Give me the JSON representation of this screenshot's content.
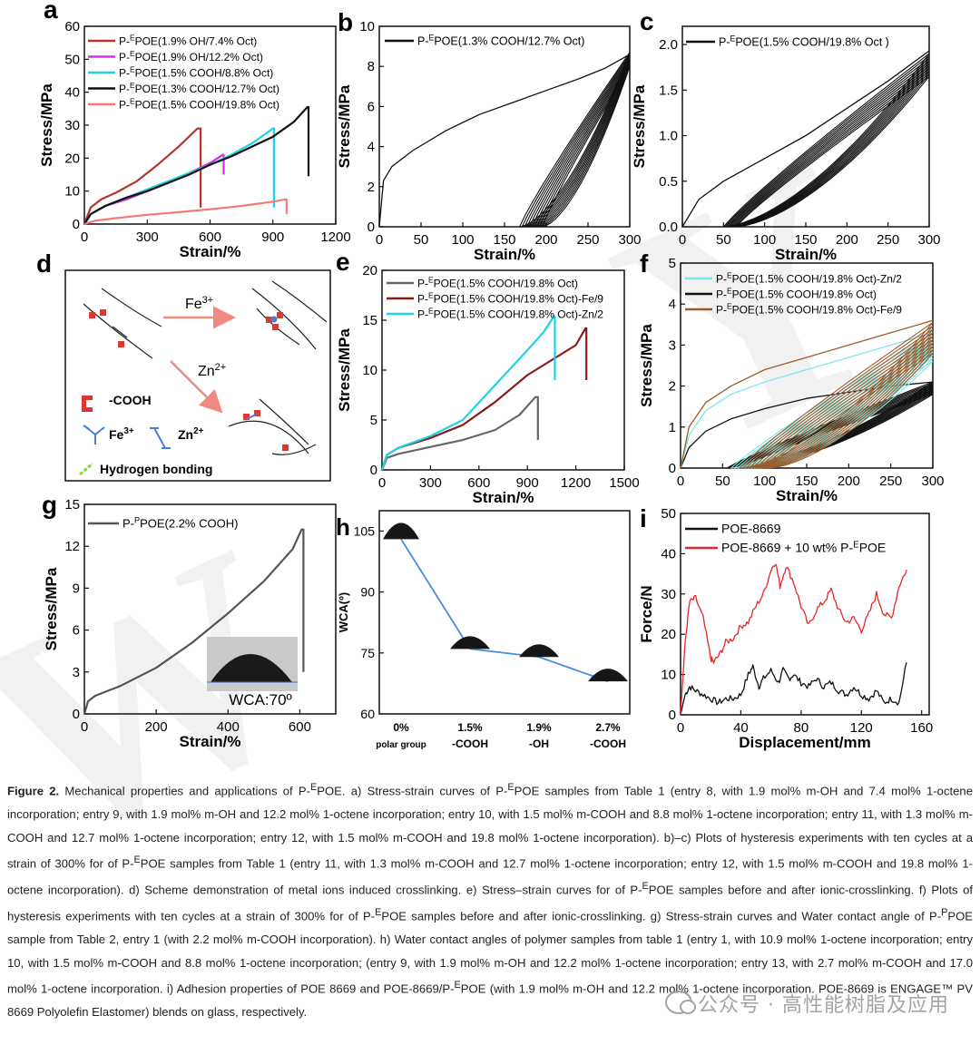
{
  "panels": {
    "a": {
      "letter": "a",
      "ylabel": "Stress/MPa",
      "xlabel": "Strain/%",
      "xticks": [
        "0",
        "300",
        "600",
        "900",
        "1200"
      ],
      "yticks": [
        "0",
        "10",
        "20",
        "30",
        "40",
        "50",
        "60"
      ]
    },
    "b": {
      "letter": "b",
      "ylabel": "Stress/MPa",
      "xlabel": "Strain/%",
      "xticks": [
        "0",
        "50",
        "100",
        "150",
        "200",
        "250",
        "300"
      ],
      "yticks": [
        "0",
        "2",
        "4",
        "6",
        "8",
        "10"
      ]
    },
    "c": {
      "letter": "c",
      "ylabel": "Stress/MPa",
      "xlabel": "Strain/%",
      "xticks": [
        "0",
        "50",
        "100",
        "150",
        "200",
        "250",
        "300"
      ],
      "yticks": [
        "0.0",
        "0.5",
        "1.0",
        "1.5",
        "2.0"
      ]
    },
    "d": {
      "letter": "d",
      "fe_label": "Fe",
      "fe_sup": "3+",
      "zn_label": "Zn",
      "zn_sup": "2+",
      "cooh_label": "-COOH",
      "fe_leg": "Fe",
      "fe_leg_sup": "3+",
      "zn_leg": "Zn",
      "zn_leg_sup": "2+",
      "hb_label": "Hydrogen bonding"
    },
    "e": {
      "letter": "e",
      "ylabel": "Stress/MPa",
      "xlabel": "Strain/%",
      "xticks": [
        "0",
        "300",
        "600",
        "900",
        "1200",
        "1500"
      ],
      "yticks": [
        "0",
        "5",
        "10",
        "15",
        "20"
      ]
    },
    "f": {
      "letter": "f",
      "ylabel": "Stress/MPa",
      "xlabel": "Strain/%",
      "xticks": [
        "0",
        "50",
        "100",
        "150",
        "200",
        "250",
        "300"
      ],
      "yticks": [
        "0",
        "1",
        "2",
        "3",
        "4",
        "5"
      ]
    },
    "g": {
      "letter": "g",
      "ylabel": "Stress/MPa",
      "xlabel": "Strain/%",
      "xticks": [
        "0",
        "200",
        "400",
        "600"
      ],
      "yticks": [
        "0",
        "3",
        "6",
        "9",
        "12",
        "15"
      ],
      "inset_label": "WCA:70º"
    },
    "h": {
      "letter": "h",
      "ylabel": "WCA(º)",
      "yticks": [
        "60",
        "75",
        "90",
        "105"
      ],
      "xticks_top": [
        "0%",
        "1.5%",
        "1.9%",
        "2.7%"
      ],
      "xticks_bottom": [
        "polar group",
        "-COOH",
        "-OH",
        "-COOH"
      ]
    },
    "i": {
      "letter": "i",
      "ylabel": "Force/N",
      "xlabel": "Displacement/mm",
      "xticks": [
        "0",
        "40",
        "80",
        "120",
        "160"
      ],
      "yticks": [
        "0",
        "10",
        "20",
        "30",
        "40",
        "50"
      ]
    }
  },
  "chart_data": [
    {
      "panel": "a",
      "type": "line",
      "title": "",
      "xlabel": "Strain/%",
      "ylabel": "Stress/MPa",
      "xlim": [
        0,
        1200
      ],
      "ylim": [
        0,
        60
      ],
      "series": [
        {
          "name": "P-EPOE(1.9% OH/7.4% Oct)",
          "name_pre": "P-",
          "name_sup": "E",
          "name_post": "POE(1.9% OH/7.4% Oct)",
          "color": "#b5352a",
          "x": [
            0,
            30,
            80,
            150,
            250,
            350,
            450,
            540,
            555,
            555
          ],
          "y": [
            0,
            5,
            7.5,
            9.5,
            13,
            18,
            23.5,
            29,
            29,
            5
          ]
        },
        {
          "name": "P-EPOE(1.9% OH/12.2% Oct)",
          "name_pre": "P-",
          "name_sup": "E",
          "name_post": "POE(1.9% OH/12.2% Oct)",
          "color": "#cc33dd",
          "x": [
            0,
            30,
            100,
            200,
            300,
            400,
            500,
            600,
            660,
            665,
            665
          ],
          "y": [
            0,
            3,
            5.5,
            7.5,
            10,
            12.5,
            15.5,
            18.5,
            21,
            21,
            15
          ]
        },
        {
          "name": "P-EPOE(1.5% COOH/8.8% Oct)",
          "name_pre": "P-",
          "name_sup": "E",
          "name_post": "POE(1.5% COOH/8.8% Oct)",
          "color": "#1fd3e6",
          "x": [
            0,
            30,
            100,
            200,
            300,
            400,
            500,
            600,
            700,
            800,
            900,
            905,
            905
          ],
          "y": [
            0,
            3,
            5.5,
            8,
            10.5,
            13,
            15.5,
            18,
            21,
            24.5,
            29,
            29,
            5
          ]
        },
        {
          "name": "P-EPOE(1.3% COOH/12.7% Oct)",
          "name_pre": "P-",
          "name_sup": "E",
          "name_post": "POE(1.3% COOH/12.7% Oct)",
          "color": "#111111",
          "x": [
            0,
            30,
            100,
            200,
            300,
            400,
            500,
            600,
            700,
            800,
            900,
            1000,
            1065,
            1070,
            1070
          ],
          "y": [
            0,
            3,
            5.5,
            8,
            10,
            12.5,
            15,
            18,
            20.5,
            23.5,
            26.5,
            31,
            35.5,
            35.5,
            14.5
          ]
        },
        {
          "name": "P-EPOE(1.5% COOH/19.8% Oct)",
          "name_pre": "P-",
          "name_sup": "E",
          "name_post": "POE(1.5% COOH/19.8% Oct)",
          "color": "#f07a74",
          "x": [
            0,
            50,
            150,
            300,
            450,
            600,
            750,
            900,
            960,
            965,
            965
          ],
          "y": [
            0,
            1,
            1.8,
            2.8,
            3.6,
            4.5,
            5.5,
            6.8,
            7.5,
            7.5,
            3
          ]
        }
      ]
    },
    {
      "panel": "b",
      "type": "line",
      "title": "",
      "xlabel": "Strain/%",
      "ylabel": "Stress/MPa",
      "xlim": [
        0,
        300
      ],
      "ylim": [
        0,
        10
      ],
      "series": [
        {
          "name": "P-EPOE(1.3% COOH/12.7% Oct)",
          "name_pre": "P-",
          "name_sup": "E",
          "name_post": "POE(1.3% COOH/12.7% Oct)",
          "color": "#111111",
          "x": [
            0,
            5,
            15,
            40,
            80,
            120,
            160,
            200,
            240,
            270,
            300
          ],
          "y": [
            0,
            2.3,
            3.0,
            3.8,
            4.8,
            5.6,
            6.2,
            6.8,
            7.4,
            7.9,
            8.6
          ],
          "cycles": 10,
          "unload_x0_range": [
            168,
            195
          ],
          "peak_y_range": [
            8.0,
            8.7
          ]
        }
      ]
    },
    {
      "panel": "c",
      "type": "line",
      "title": "",
      "xlabel": "Strain/%",
      "ylabel": "Stress/MPa",
      "xlim": [
        0,
        300
      ],
      "ylim": [
        0,
        2.2
      ],
      "series": [
        {
          "name": "P-EPOE(1.5% COOH/19.8% Oct )",
          "name_pre": "P-",
          "name_sup": "E",
          "name_post": "POE(1.5% COOH/19.8% Oct )",
          "color": "#111111",
          "x": [
            0,
            20,
            50,
            100,
            150,
            200,
            250,
            300
          ],
          "y": [
            0,
            0.3,
            0.5,
            0.75,
            1.0,
            1.3,
            1.6,
            1.93
          ],
          "cycles": 10,
          "unload_x0_range": [
            50,
            65
          ],
          "peak_y_range": [
            1.65,
            1.9
          ]
        }
      ]
    },
    {
      "panel": "e",
      "type": "line",
      "title": "",
      "xlabel": "Strain/%",
      "ylabel": "Stress/MPa",
      "xlim": [
        0,
        1500
      ],
      "ylim": [
        0,
        20
      ],
      "series": [
        {
          "name": "P-EPOE(1.5% COOH/19.8% Oct)",
          "name_pre": "P-",
          "name_sup": "E",
          "name_post": "POE(1.5% COOH/19.8% Oct)",
          "color": "#666666",
          "x": [
            0,
            30,
            100,
            300,
            500,
            700,
            850,
            950,
            965,
            965
          ],
          "y": [
            0,
            1.2,
            1.6,
            2.3,
            3.0,
            4.0,
            5.5,
            7.3,
            7.3,
            3
          ]
        },
        {
          "name": "P-EPOE(1.5% COOH/19.8% Oct)-Fe/9",
          "name_pre": "P-",
          "name_sup": "E",
          "name_post": "POE(1.5% COOH/19.8% Oct)-Fe/9",
          "color": "#8b1a1a",
          "x": [
            0,
            30,
            100,
            300,
            500,
            700,
            900,
            1100,
            1200,
            1260,
            1265,
            1265
          ],
          "y": [
            0,
            1.5,
            2.2,
            3.2,
            4.5,
            6.8,
            9.5,
            11.5,
            12.5,
            14.2,
            14.2,
            9
          ]
        },
        {
          "name": "P-EPOE(1.5% COOH/19.8% Oct)-Zn/2",
          "name_pre": "P-",
          "name_sup": "E",
          "name_post": "POE(1.5% COOH/19.8% Oct)-Zn/2",
          "color": "#1fd3e6",
          "x": [
            0,
            30,
            100,
            300,
            500,
            700,
            900,
            1000,
            1065,
            1070,
            1070
          ],
          "y": [
            0,
            1.5,
            2.2,
            3.4,
            5.0,
            8.5,
            12,
            13.8,
            15.4,
            15.4,
            9
          ]
        }
      ]
    },
    {
      "panel": "f",
      "type": "line",
      "title": "",
      "xlabel": "Strain/%",
      "ylabel": "Stress/MPa",
      "xlim": [
        0,
        300
      ],
      "ylim": [
        0,
        5
      ],
      "series": [
        {
          "name": "P-EPOE(1.5% COOH/19.8% Oct)-Zn/2",
          "name_pre": "P-",
          "name_sup": "E",
          "name_post": "POE(1.5% COOH/19.8% Oct)-Zn/2",
          "color": "#7de8ec",
          "x": [
            0,
            10,
            30,
            60,
            100,
            150,
            200,
            250,
            300
          ],
          "y": [
            0,
            0.8,
            1.4,
            1.8,
            2.1,
            2.4,
            2.7,
            3.0,
            3.3
          ],
          "cycles": 10,
          "unload_x0_range": [
            60,
            95
          ],
          "peak_y_range": [
            2.6,
            3.3
          ]
        },
        {
          "name": "P-EPOE(1.5% COOH/19.8% Oct)",
          "name_pre": "P-",
          "name_sup": "E",
          "name_post": "POE(1.5% COOH/19.8% Oct)",
          "color": "#111111",
          "x": [
            0,
            10,
            30,
            60,
            100,
            150,
            200,
            250,
            300
          ],
          "y": [
            0,
            0.5,
            0.9,
            1.2,
            1.45,
            1.7,
            1.85,
            2.0,
            2.1
          ],
          "cycles": 10,
          "unload_x0_range": [
            55,
            70
          ],
          "peak_y_range": [
            1.8,
            2.1
          ]
        },
        {
          "name": "P-EPOE(1.5% COOH/19.8% Oct)-Fe/9",
          "name_pre": "P-",
          "name_sup": "E",
          "name_post": "POE(1.5% COOH/19.8% Oct)-Fe/9",
          "color": "#9c5a2a",
          "x": [
            0,
            10,
            30,
            60,
            100,
            150,
            200,
            250,
            300
          ],
          "y": [
            0,
            1.0,
            1.6,
            2.0,
            2.4,
            2.7,
            3.0,
            3.3,
            3.6
          ],
          "cycles": 10,
          "unload_x0_range": [
            70,
            105
          ],
          "peak_y_range": [
            2.8,
            3.55
          ]
        }
      ]
    },
    {
      "panel": "g",
      "type": "line",
      "title": "",
      "xlabel": "Strain/%",
      "ylabel": "Stress/MPa",
      "xlim": [
        0,
        700
      ],
      "ylim": [
        0,
        15
      ],
      "series": [
        {
          "name": "P-PPOE(2.2% COOH)",
          "name_pre": "P-",
          "name_sup": "P",
          "name_post": "POE(2.2% COOH)",
          "color": "#555555",
          "x": [
            0,
            10,
            30,
            60,
            100,
            200,
            300,
            400,
            500,
            580,
            605,
            610,
            610
          ],
          "y": [
            0,
            0.9,
            1.3,
            1.6,
            2.0,
            3.3,
            5.1,
            7.2,
            9.5,
            11.8,
            13.2,
            13.2,
            3
          ]
        }
      ]
    },
    {
      "panel": "h",
      "type": "line",
      "title": "",
      "xlabel": "",
      "ylabel": "WCA(º)",
      "ylim": [
        60,
        110
      ],
      "categories": [
        "0% polar group",
        "1.5% -COOH",
        "1.9% -OH",
        "2.7% -COOH"
      ],
      "series": [
        {
          "name": "WCA",
          "color": "#4a8fdc",
          "values": [
            103,
            76,
            74,
            68
          ]
        }
      ]
    },
    {
      "panel": "i",
      "type": "line",
      "title": "",
      "xlabel": "Displacement/mm",
      "ylabel": "Force/N",
      "xlim": [
        0,
        165
      ],
      "ylim": [
        0,
        50
      ],
      "series": [
        {
          "name": "POE-8669",
          "color": "#111111",
          "x": [
            0,
            3,
            6,
            10,
            15,
            20,
            25,
            30,
            35,
            40,
            45,
            48,
            52,
            55,
            60,
            65,
            68,
            72,
            75,
            80,
            85,
            90,
            95,
            100,
            105,
            110,
            115,
            120,
            125,
            130,
            135,
            140,
            145,
            150
          ],
          "y": [
            0,
            5,
            7,
            6,
            5,
            4,
            3,
            4,
            4,
            5,
            10,
            12,
            7,
            9,
            11,
            8,
            11,
            9,
            10,
            8,
            7,
            9,
            7,
            8,
            6,
            5,
            7,
            5,
            4,
            6,
            3,
            4,
            3,
            13
          ]
        },
        {
          "name": "POE-8669 + 10 wt% P-EPOE",
          "name_pre": "POE-8669 + 10 wt% P-",
          "name_sup": "E",
          "name_post": "POE",
          "color": "#e8262a",
          "x": [
            0,
            3,
            6,
            10,
            15,
            20,
            22,
            26,
            30,
            35,
            40,
            45,
            50,
            55,
            60,
            63,
            66,
            70,
            75,
            80,
            85,
            90,
            95,
            100,
            105,
            110,
            115,
            120,
            125,
            130,
            135,
            140,
            145,
            150
          ],
          "y": [
            0,
            18,
            28,
            29,
            24,
            14,
            13,
            15,
            18,
            19,
            22,
            23,
            27,
            30,
            36,
            38,
            32,
            37,
            33,
            27,
            22,
            26,
            28,
            31,
            26,
            23,
            24,
            21,
            25,
            30,
            25,
            24,
            32,
            36
          ]
        }
      ]
    }
  ],
  "caption": {
    "label": "Figure 2.",
    "t1": " Mechanical properties and applications of P-",
    "sup1": "E",
    "t2": "POE. a) Stress-strain curves of P-",
    "sup2": "E",
    "t3": "POE samples from Table 1 (entry 8, with 1.9 mol% m-OH and 7.4 mol% 1-octene incorporation; entry 9, with 1.9 mol% m-OH and 12.2 mol% 1-octene incorporation; entry 10, with 1.5 mol% m-COOH and 8.8 mol% 1-octene incorporation; entry 11, with 1.3 mol% m-COOH and 12.7 mol% 1-octene incorporation; entry 12, with 1.5 mol% m-COOH and 19.8 mol% 1-octene incorporation). b)–c) Plots of hysteresis experiments with ten cycles at a strain of 300% for of P-",
    "sup3": "E",
    "t4": "POE samples from Table 1 (entry 11, with 1.3 mol% m-COOH and 12.7 mol% 1-octene incorporation; entry 12, with 1.5 mol% m-COOH and 19.8 mol% 1-octene incorporation). d) Scheme demonstration of metal ions induced crosslinking. e) Stress–strain curves for of P-",
    "sup4": "E",
    "t5": "POE samples before and after ionic-crosslinking. f) Plots of hysteresis experiments with ten cycles at a strain of 300% for of P-",
    "sup5": "E",
    "t6": "POE samples before and after ionic-crosslinking. g) Stress-strain curves and Water contact angle of P-",
    "sup6": "P",
    "t7": "POE sample from Table 2, entry 1 (with 2.2 mol% m-COOH incorporation). h) Water contact angles of polymer samples from table 1 (entry 1, with 10.9 mol% 1-octene incorporation; entry 10, with 1.5 mol% m-COOH and 8.8 mol% 1-octene incorporation; (entry 9, with 1.9 mol% m-OH and 12.2 mol% 1-octene incorporation; entry 13, with 2.7 mol% m-COOH and 17.0 mol% 1-octene incorporation. i) Adhesion properties of POE 8669 and POE-8669/P-",
    "sup7": "E",
    "t8": "POE (with 1.9 mol% m-OH and 12.2 mol% 1-octene incorporation. POE-8669 is ENGAGE™ PV 8669 Polyolefin Elastomer) blends on glass, respectively."
  },
  "watermark": {
    "text": "公众号 · 高性能树脂及应用",
    "big": "WILEY-VCH"
  },
  "colors": {
    "blue_line": "#4a8fdc",
    "red_arrow": "#f08a80",
    "cooh": "#d93a30",
    "fe": "#4a7fd0",
    "hbond": "#8bd13a"
  }
}
